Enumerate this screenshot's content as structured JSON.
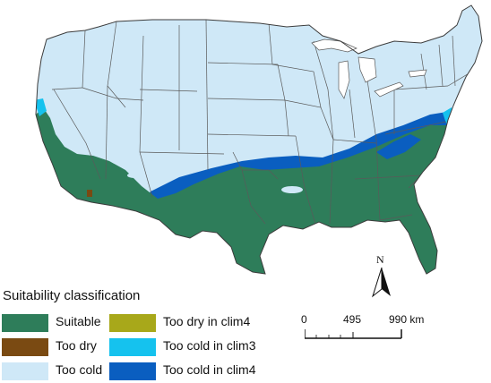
{
  "legend": {
    "title": "Suitability classification",
    "items": [
      {
        "label": "Suitable",
        "color": "#2e7d5a"
      },
      {
        "label": "Too dry",
        "color": "#7a4a12"
      },
      {
        "label": "Too cold",
        "color": "#cfe8f7"
      },
      {
        "label": "Too dry in clim4",
        "color": "#a8a81a"
      },
      {
        "label": "Too cold in clim3",
        "color": "#15c2ee"
      },
      {
        "label": "Too cold in clim4",
        "color": "#0a5ec0"
      }
    ]
  },
  "north_arrow": {
    "label": "N"
  },
  "scale_bar": {
    "labels": [
      "0",
      "495",
      "990 km"
    ]
  }
}
